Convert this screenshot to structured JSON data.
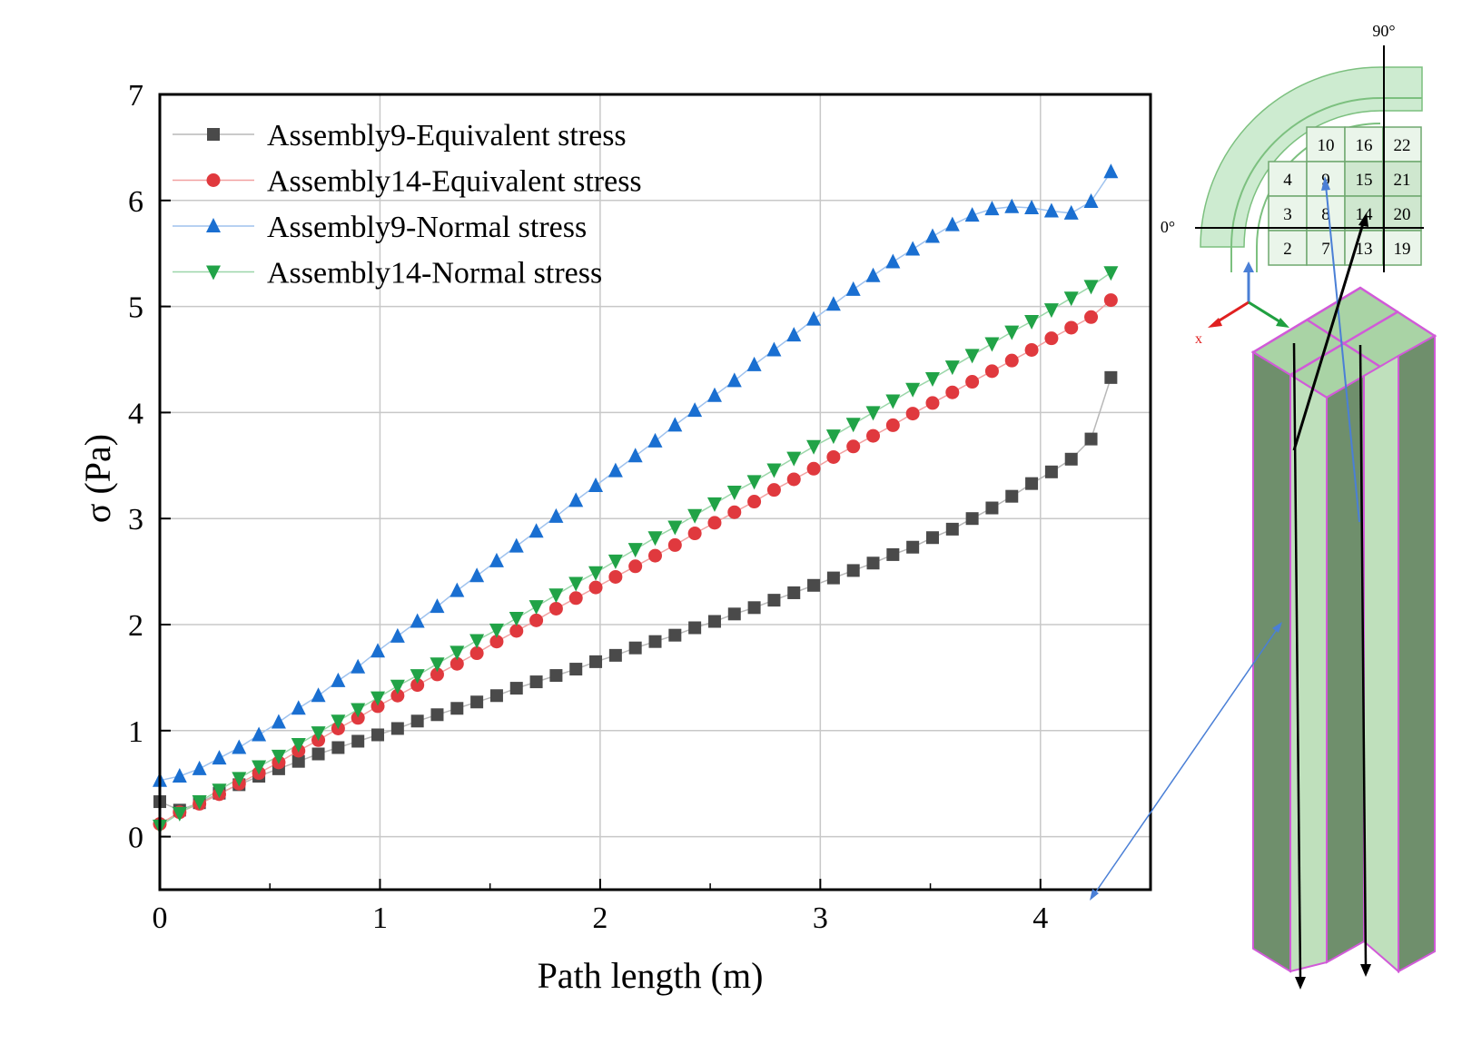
{
  "chart_data": {
    "type": "line",
    "xlabel": "Path length (m)",
    "ylabel": "σ (Pa)",
    "xlim": [
      0,
      4.5
    ],
    "ylim": [
      -0.5,
      7
    ],
    "xticks": [
      0,
      1,
      2,
      3,
      4
    ],
    "yticks": [
      0,
      1,
      2,
      3,
      4,
      5,
      6,
      7
    ],
    "grid": true,
    "legend": "top-left",
    "series": [
      {
        "name": "Assembly9-Equivalent stress",
        "marker": "square",
        "color": "#4a4a4a",
        "line_color": "#b8b8b8",
        "x": [
          0,
          0.09,
          0.18,
          0.27,
          0.36,
          0.45,
          0.54,
          0.63,
          0.72,
          0.81,
          0.9,
          0.99,
          1.08,
          1.17,
          1.26,
          1.35,
          1.44,
          1.53,
          1.62,
          1.71,
          1.8,
          1.89,
          1.98,
          2.07,
          2.16,
          2.25,
          2.34,
          2.43,
          2.52,
          2.61,
          2.7,
          2.79,
          2.88,
          2.97,
          3.06,
          3.15,
          3.24,
          3.33,
          3.42,
          3.51,
          3.6,
          3.69,
          3.78,
          3.87,
          3.96,
          4.05,
          4.14,
          4.23,
          4.32
        ],
        "y": [
          0.33,
          0.25,
          0.32,
          0.41,
          0.49,
          0.57,
          0.64,
          0.71,
          0.78,
          0.84,
          0.9,
          0.96,
          1.02,
          1.09,
          1.15,
          1.21,
          1.27,
          1.33,
          1.4,
          1.46,
          1.52,
          1.58,
          1.65,
          1.71,
          1.78,
          1.84,
          1.9,
          1.97,
          2.03,
          2.1,
          2.16,
          2.23,
          2.3,
          2.37,
          2.44,
          2.51,
          2.58,
          2.66,
          2.73,
          2.82,
          2.9,
          3.0,
          3.1,
          3.21,
          3.33,
          3.44,
          3.56,
          3.75,
          4.33
        ]
      },
      {
        "name": "Assembly14-Equivalent stress",
        "marker": "circle",
        "color": "#e0393e",
        "line_color": "#f2a0a0",
        "x": [
          0,
          0.09,
          0.18,
          0.27,
          0.36,
          0.45,
          0.54,
          0.63,
          0.72,
          0.81,
          0.9,
          0.99,
          1.08,
          1.17,
          1.26,
          1.35,
          1.44,
          1.53,
          1.62,
          1.71,
          1.8,
          1.89,
          1.98,
          2.07,
          2.16,
          2.25,
          2.34,
          2.43,
          2.52,
          2.61,
          2.7,
          2.79,
          2.88,
          2.97,
          3.06,
          3.15,
          3.24,
          3.33,
          3.42,
          3.51,
          3.6,
          3.69,
          3.78,
          3.87,
          3.96,
          4.05,
          4.14,
          4.23,
          4.32
        ],
        "y": [
          0.12,
          0.23,
          0.31,
          0.4,
          0.5,
          0.6,
          0.7,
          0.81,
          0.91,
          1.02,
          1.12,
          1.23,
          1.33,
          1.43,
          1.53,
          1.63,
          1.73,
          1.84,
          1.94,
          2.04,
          2.15,
          2.25,
          2.35,
          2.45,
          2.55,
          2.65,
          2.75,
          2.86,
          2.96,
          3.06,
          3.16,
          3.27,
          3.37,
          3.47,
          3.58,
          3.68,
          3.78,
          3.88,
          3.99,
          4.09,
          4.19,
          4.29,
          4.39,
          4.49,
          4.59,
          4.7,
          4.8,
          4.9,
          5.06
        ]
      },
      {
        "name": "Assembly9-Normal stress",
        "marker": "triangle-up",
        "color": "#1a6fd1",
        "line_color": "#9fc2ee",
        "x": [
          0,
          0.09,
          0.18,
          0.27,
          0.36,
          0.45,
          0.54,
          0.63,
          0.72,
          0.81,
          0.9,
          0.99,
          1.08,
          1.17,
          1.26,
          1.35,
          1.44,
          1.53,
          1.62,
          1.71,
          1.8,
          1.89,
          1.98,
          2.07,
          2.16,
          2.25,
          2.34,
          2.43,
          2.52,
          2.61,
          2.7,
          2.79,
          2.88,
          2.97,
          3.06,
          3.15,
          3.24,
          3.33,
          3.42,
          3.51,
          3.6,
          3.69,
          3.78,
          3.87,
          3.96,
          4.05,
          4.14,
          4.23,
          4.32
        ],
        "y": [
          0.53,
          0.57,
          0.64,
          0.74,
          0.84,
          0.96,
          1.08,
          1.21,
          1.33,
          1.47,
          1.6,
          1.75,
          1.89,
          2.03,
          2.17,
          2.32,
          2.46,
          2.6,
          2.74,
          2.88,
          3.02,
          3.17,
          3.31,
          3.45,
          3.59,
          3.73,
          3.88,
          4.02,
          4.16,
          4.3,
          4.45,
          4.59,
          4.73,
          4.88,
          5.02,
          5.16,
          5.29,
          5.42,
          5.54,
          5.66,
          5.77,
          5.86,
          5.92,
          5.94,
          5.93,
          5.9,
          5.88,
          5.99,
          6.27
        ]
      },
      {
        "name": "Assembly14-Normal stress",
        "marker": "triangle-down",
        "color": "#21a347",
        "line_color": "#9bd6a9",
        "x": [
          0,
          0.09,
          0.18,
          0.27,
          0.36,
          0.45,
          0.54,
          0.63,
          0.72,
          0.81,
          0.9,
          0.99,
          1.08,
          1.17,
          1.26,
          1.35,
          1.44,
          1.53,
          1.62,
          1.71,
          1.8,
          1.89,
          1.98,
          2.07,
          2.16,
          2.25,
          2.34,
          2.43,
          2.52,
          2.61,
          2.7,
          2.79,
          2.88,
          2.97,
          3.06,
          3.15,
          3.24,
          3.33,
          3.42,
          3.51,
          3.6,
          3.69,
          3.78,
          3.87,
          3.96,
          4.05,
          4.14,
          4.23,
          4.32
        ],
        "y": [
          0.1,
          0.22,
          0.33,
          0.44,
          0.55,
          0.66,
          0.76,
          0.87,
          0.98,
          1.09,
          1.2,
          1.31,
          1.42,
          1.52,
          1.63,
          1.74,
          1.85,
          1.95,
          2.06,
          2.17,
          2.28,
          2.39,
          2.49,
          2.6,
          2.71,
          2.82,
          2.92,
          3.03,
          3.14,
          3.25,
          3.35,
          3.46,
          3.57,
          3.68,
          3.78,
          3.89,
          4.0,
          4.11,
          4.22,
          4.32,
          4.43,
          4.54,
          4.65,
          4.76,
          4.86,
          4.97,
          5.08,
          5.19,
          5.32
        ]
      }
    ]
  },
  "diagram": {
    "angle_top": "90°",
    "angle_left": "0°",
    "axis_x_label": "x",
    "grid_cells": [
      {
        "label": "10",
        "col": 1,
        "row": 0
      },
      {
        "label": "16",
        "col": 2,
        "row": 0
      },
      {
        "label": "22",
        "col": 3,
        "row": 0
      },
      {
        "label": "4",
        "col": 0,
        "row": 1
      },
      {
        "label": "9",
        "col": 1,
        "row": 1
      },
      {
        "label": "15",
        "col": 2,
        "row": 1
      },
      {
        "label": "21",
        "col": 3,
        "row": 1
      },
      {
        "label": "3",
        "col": 0,
        "row": 2
      },
      {
        "label": "8",
        "col": 1,
        "row": 2
      },
      {
        "label": "14",
        "col": 2,
        "row": 2
      },
      {
        "label": "20",
        "col": 3,
        "row": 2
      },
      {
        "label": "2",
        "col": 0,
        "row": 3
      },
      {
        "label": "7",
        "col": 1,
        "row": 3
      },
      {
        "label": "13",
        "col": 2,
        "row": 3
      },
      {
        "label": "19",
        "col": 3,
        "row": 3
      }
    ],
    "colors": {
      "arc_fill": "#cdebd0",
      "cell_fill": "#eaf5ea",
      "cell_highlight": "#cfe7cf",
      "column_dark": "#6f8f6c",
      "column_light": "#bfe0bc",
      "column_edge": "#d15ad8",
      "arrow_blue": "#4a7fd6",
      "arrow_black": "#000000"
    }
  }
}
